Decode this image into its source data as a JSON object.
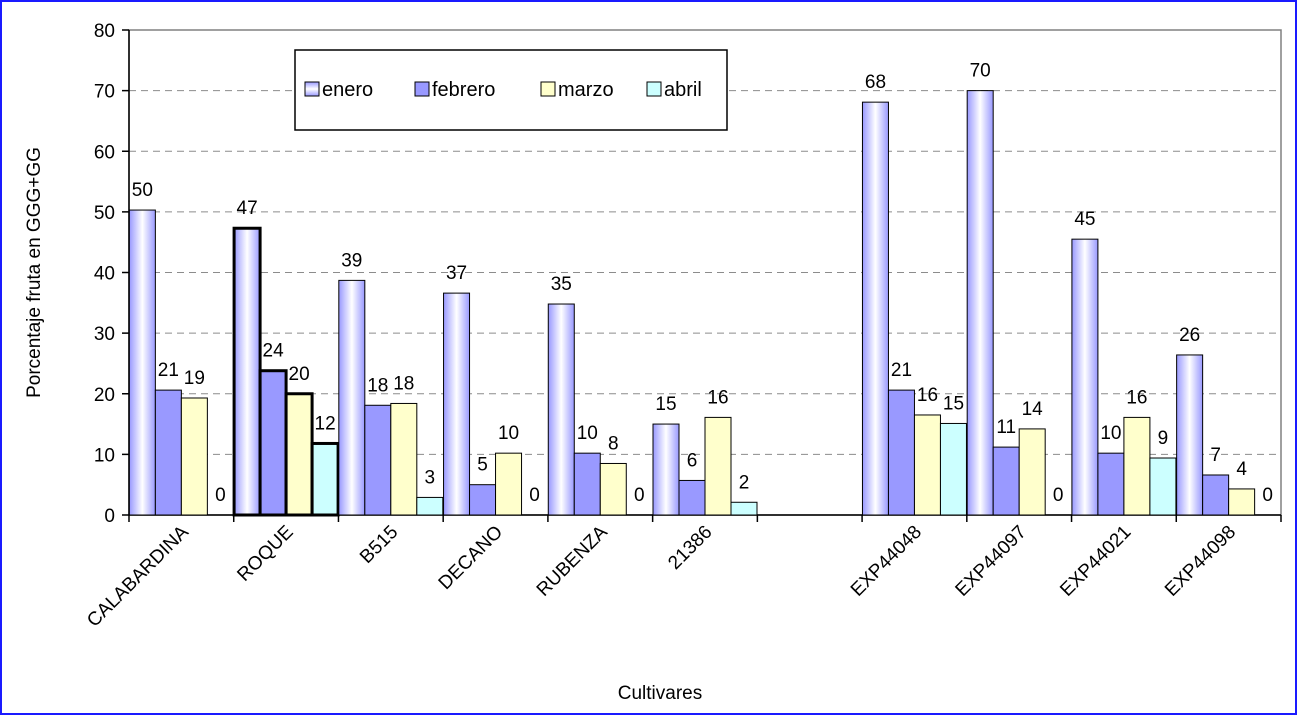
{
  "chart_data": {
    "type": "bar",
    "xlabel": "Cultivares",
    "ylabel": "Porcentaje fruta en GGG+GG",
    "ylim": [
      0,
      80
    ],
    "yticks": [
      0,
      10,
      20,
      30,
      40,
      50,
      60,
      70,
      80
    ],
    "grid": "horizontal dashed",
    "legend_position": "top-left inside",
    "categories": [
      "CALABARDINA",
      "ROQUE",
      "B515",
      "DECANO",
      "RUBENZA",
      "21386",
      "",
      "EXP44048",
      "EXP44097",
      "EXP44021",
      "EXP44098"
    ],
    "series": [
      {
        "name": "enero",
        "color": "#9999ff",
        "values": [
          50.3,
          47.3,
          38.7,
          36.6,
          34.8,
          15.0,
          null,
          68.1,
          70.0,
          45.5,
          26.4
        ],
        "labels": [
          "50",
          "47",
          "39",
          "37",
          "35",
          "15",
          "",
          "68",
          "70",
          "45",
          "26"
        ]
      },
      {
        "name": "febrero",
        "color": "#9999ff",
        "values": [
          20.6,
          23.8,
          18.1,
          5.0,
          10.2,
          5.7,
          null,
          20.6,
          11.2,
          10.2,
          6.6
        ],
        "labels": [
          "21",
          "24",
          "18",
          "5",
          "10",
          "6",
          "",
          "21",
          "11",
          "10",
          "7"
        ]
      },
      {
        "name": "marzo",
        "color": "#ffffcc",
        "values": [
          19.3,
          20.0,
          18.4,
          10.2,
          8.5,
          16.1,
          null,
          16.5,
          14.2,
          16.1,
          4.3
        ],
        "labels": [
          "19",
          "20",
          "18",
          "10",
          "8",
          "16",
          "",
          "16",
          "14",
          "16",
          "4"
        ]
      },
      {
        "name": "abril",
        "color": "#ccffff",
        "values": [
          0,
          11.8,
          2.9,
          0,
          0,
          2.1,
          null,
          15.1,
          0,
          9.4,
          0
        ],
        "labels": [
          "0",
          "12",
          "3",
          "0",
          "0",
          "2",
          "",
          "15",
          "0",
          "9",
          "0"
        ]
      }
    ],
    "highlighted_category": "ROQUE"
  }
}
